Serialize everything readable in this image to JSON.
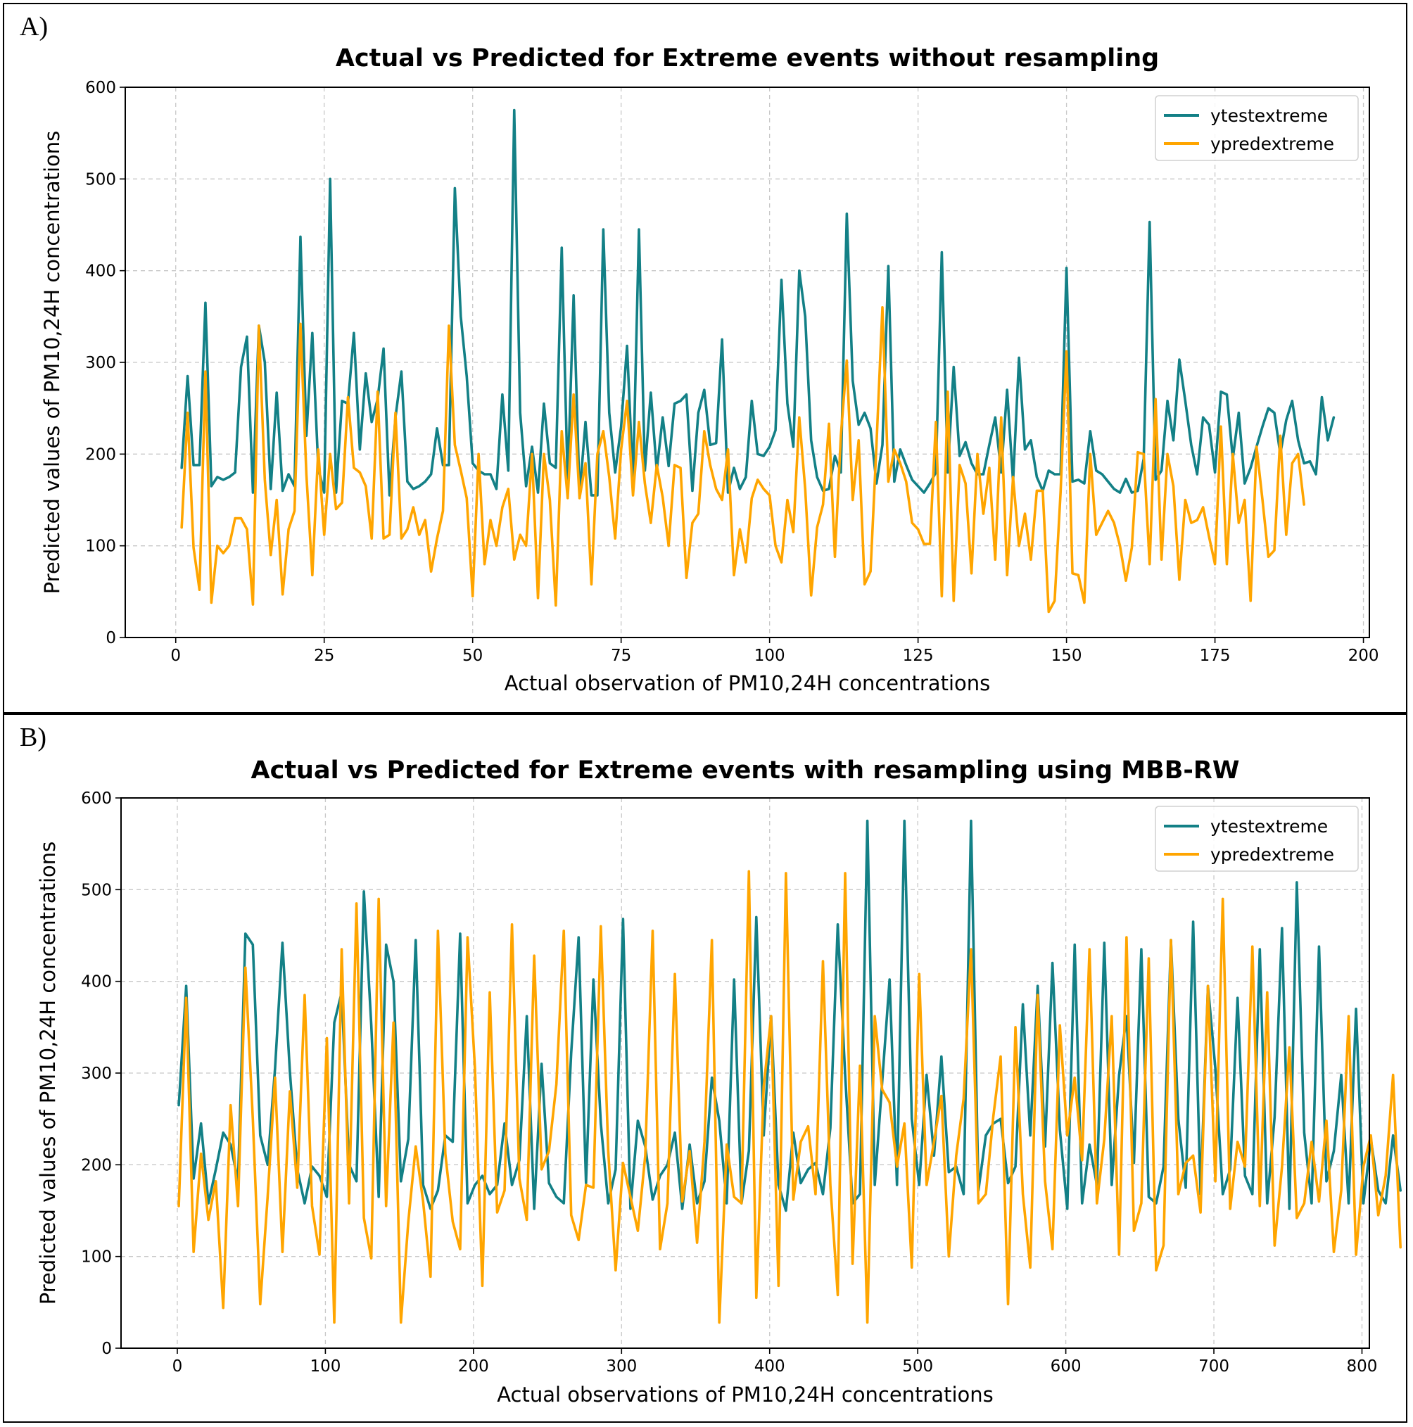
{
  "panels": {
    "a": {
      "label": "A)"
    },
    "b": {
      "label": "B)"
    }
  },
  "colors": {
    "ytest": "#138086",
    "ypred": "#FFA500"
  },
  "chart_data": [
    {
      "type": "line",
      "title": "Actual vs Predicted for Extreme events without resampling",
      "xlabel": "Actual observation of PM10,24H concentrations",
      "ylabel": "Predicted values of PM10,24H concentrations",
      "xlim": [
        -8.5,
        201
      ],
      "ylim": [
        0,
        600
      ],
      "xticks": [
        0,
        25,
        50,
        75,
        100,
        125,
        150,
        175,
        200
      ],
      "yticks": [
        0,
        100,
        200,
        300,
        400,
        500,
        600
      ],
      "grid": true,
      "legend": "top-right",
      "legend_entries": [
        "ytestextreme",
        "ypredextreme"
      ],
      "series": [
        {
          "name": "ytestextreme",
          "x_start": 1,
          "values": [
            185,
            285,
            188,
            188,
            365,
            165,
            175,
            172,
            175,
            180,
            295,
            328,
            158,
            340,
            300,
            162,
            267,
            160,
            178,
            165,
            437,
            220,
            332,
            185,
            158,
            500,
            158,
            258,
            255,
            332,
            205,
            288,
            235,
            260,
            315,
            155,
            240,
            290,
            170,
            162,
            165,
            170,
            178,
            228,
            188,
            188,
            490,
            350,
            285,
            190,
            182,
            178,
            178,
            162,
            265,
            182,
            575,
            245,
            165,
            208,
            158,
            255,
            190,
            185,
            425,
            170,
            373,
            155,
            235,
            155,
            155,
            445,
            245,
            180,
            230,
            318,
            170,
            445,
            182,
            267,
            182,
            240,
            187,
            255,
            258,
            265,
            160,
            245,
            270,
            210,
            212,
            325,
            158,
            185,
            162,
            175,
            258,
            200,
            198,
            208,
            226,
            390,
            255,
            208,
            400,
            350,
            215,
            175,
            160,
            162,
            198,
            180,
            462,
            280,
            232,
            245,
            228,
            168,
            210,
            405,
            170,
            205,
            188,
            172,
            165,
            158,
            168,
            180,
            420,
            180,
            295,
            198,
            213,
            190,
            178,
            178,
            210,
            240,
            180,
            270,
            170,
            305,
            205,
            215,
            175,
            160,
            182,
            178,
            178,
            403,
            170,
            172,
            168,
            225,
            182,
            178,
            170,
            162,
            158,
            173,
            158,
            160,
            195,
            453,
            172,
            182,
            258,
            215,
            303,
            258,
            210,
            178,
            240,
            232,
            180,
            268,
            265,
            195,
            245,
            168,
            185,
            208,
            230,
            250,
            245,
            200,
            237,
            258,
            215,
            190,
            192,
            178,
            262,
            215,
            240
          ]
        },
        {
          "name": "ypredextreme",
          "x_start": 1,
          "values": [
            120,
            245,
            98,
            52,
            290,
            38,
            100,
            92,
            100,
            130,
            130,
            118,
            36,
            340,
            172,
            90,
            150,
            47,
            118,
            138,
            342,
            178,
            68,
            205,
            112,
            200,
            140,
            147,
            262,
            185,
            180,
            165,
            108,
            268,
            108,
            112,
            245,
            108,
            118,
            142,
            112,
            128,
            72,
            108,
            138,
            340,
            210,
            182,
            152,
            45,
            200,
            80,
            128,
            100,
            142,
            162,
            85,
            112,
            100,
            200,
            43,
            200,
            150,
            35,
            225,
            152,
            265,
            152,
            190,
            58,
            200,
            225,
            175,
            108,
            205,
            258,
            155,
            235,
            168,
            125,
            188,
            153,
            100,
            188,
            185,
            65,
            125,
            135,
            225,
            188,
            162,
            150,
            205,
            68,
            118,
            82,
            152,
            172,
            162,
            155,
            100,
            82,
            150,
            115,
            240,
            162,
            46,
            120,
            145,
            233,
            88,
            220,
            302,
            150,
            215,
            58,
            72,
            210,
            360,
            170,
            205,
            190,
            170,
            125,
            118,
            102,
            102,
            235,
            45,
            268,
            40,
            188,
            168,
            70,
            200,
            135,
            185,
            85,
            240,
            68,
            175,
            100,
            135,
            85,
            160,
            160,
            28,
            40,
            158,
            312,
            70,
            68,
            38,
            200,
            112,
            125,
            138,
            125,
            100,
            62,
            98,
            202,
            200,
            80,
            260,
            85,
            200,
            165,
            63,
            150,
            125,
            128,
            142,
            110,
            80,
            230,
            80,
            200,
            125,
            150,
            40,
            208,
            150,
            88,
            95,
            220,
            112,
            190,
            200,
            145
          ]
        }
      ]
    },
    {
      "type": "line",
      "title": "Actual vs Predicted for Extreme events with resampling using MBB-RW",
      "xlabel": "Actual observations of PM10,24H concentrations",
      "ylabel": "Predicted values of PM10,24H concentrations",
      "xlim": [
        -38,
        805
      ],
      "ylim": [
        0,
        600
      ],
      "xticks": [
        0,
        100,
        200,
        300,
        400,
        500,
        600,
        700,
        800
      ],
      "yticks": [
        0,
        100,
        200,
        300,
        400,
        500,
        600
      ],
      "grid": true,
      "legend": "top-right",
      "legend_entries": [
        "ytestextreme",
        "ypredextreme"
      ],
      "series": [
        {
          "name": "ytestextreme",
          "x_start": 1,
          "x_step": 5,
          "values": [
            265,
            395,
            185,
            245,
            158,
            195,
            235,
            222,
            182,
            452,
            440,
            232,
            200,
            305,
            442,
            302,
            195,
            158,
            198,
            188,
            165,
            355,
            388,
            200,
            182,
            498,
            352,
            165,
            440,
            400,
            182,
            228,
            445,
            178,
            152,
            172,
            232,
            225,
            452,
            158,
            178,
            188,
            168,
            178,
            245,
            178,
            205,
            362,
            152,
            310,
            180,
            165,
            158,
            322,
            448,
            180,
            402,
            245,
            158,
            195,
            468,
            152,
            248,
            220,
            162,
            188,
            200,
            235,
            152,
            222,
            158,
            182,
            295,
            248,
            158,
            402,
            158,
            215,
            470,
            232,
            362,
            178,
            150,
            235,
            180,
            195,
            202,
            168,
            240,
            462,
            298,
            158,
            168,
            575,
            178,
            290,
            402,
            178,
            575,
            250,
            178,
            298,
            210,
            318,
            192,
            198,
            168,
            575,
            172,
            232,
            245,
            250,
            180,
            198,
            375,
            232,
            395,
            220,
            420,
            238,
            152,
            440,
            158,
            222,
            178,
            442,
            178,
            298,
            362,
            202,
            435,
            165,
            158,
            198,
            445,
            250,
            175,
            465,
            168,
            395,
            305,
            168,
            195,
            382,
            188,
            168,
            435,
            158,
            252,
            458,
            152,
            508,
            235,
            158,
            438,
            182,
            215,
            298,
            158,
            370,
            158,
            228,
            172,
            158,
            232,
            172
          ]
        },
        {
          "name": "ypredextreme",
          "x_start": 1,
          "x_step": 5,
          "values": [
            155,
            382,
            105,
            212,
            140,
            182,
            44,
            265,
            155,
            415,
            250,
            48,
            165,
            295,
            105,
            280,
            175,
            385,
            155,
            102,
            338,
            28,
            435,
            158,
            485,
            142,
            98,
            490,
            155,
            355,
            28,
            138,
            220,
            160,
            78,
            455,
            212,
            138,
            108,
            448,
            305,
            68,
            388,
            148,
            172,
            462,
            185,
            140,
            428,
            195,
            215,
            288,
            455,
            145,
            118,
            178,
            175,
            460,
            215,
            85,
            202,
            165,
            128,
            210,
            455,
            108,
            158,
            408,
            160,
            215,
            115,
            225,
            445,
            28,
            222,
            165,
            158,
            520,
            55,
            285,
            362,
            68,
            518,
            162,
            225,
            242,
            168,
            422,
            178,
            58,
            518,
            92,
            308,
            28,
            362,
            282,
            268,
            198,
            245,
            88,
            408,
            178,
            225,
            275,
            100,
            210,
            272,
            435,
            158,
            168,
            252,
            318,
            48,
            350,
            168,
            88,
            385,
            182,
            108,
            352,
            232,
            295,
            205,
            435,
            158,
            228,
            362,
            102,
            448,
            128,
            158,
            425,
            85,
            112,
            445,
            168,
            202,
            210,
            148,
            395,
            182,
            490,
            152,
            225,
            198,
            438,
            155,
            388,
            112,
            198,
            328,
            142,
            158,
            225,
            160,
            248,
            105,
            172,
            362,
            102,
            198,
            232,
            145,
            188,
            298,
            110
          ]
        }
      ]
    }
  ]
}
